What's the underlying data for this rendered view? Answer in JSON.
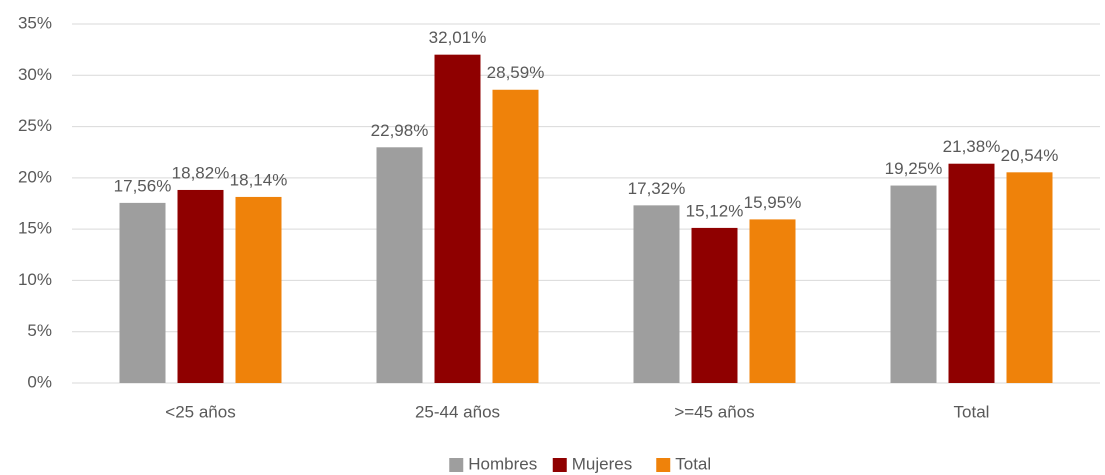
{
  "chart_data": {
    "type": "bar",
    "categories": [
      "<25 años",
      "25-44 años",
      ">=45 años",
      "Total"
    ],
    "series": [
      {
        "name": "Hombres",
        "color": "#9e9e9e",
        "values": [
          17.56,
          22.98,
          17.32,
          19.25
        ],
        "value_labels": [
          "17,56%",
          "22,98%",
          "17,32%",
          "19,25%"
        ]
      },
      {
        "name": "Mujeres",
        "color": "#8f0000",
        "values": [
          18.82,
          32.01,
          15.12,
          21.38
        ],
        "value_labels": [
          "18,82%",
          "32,01%",
          "15,12%",
          "21,38%"
        ]
      },
      {
        "name": "Total",
        "color": "#ef820a",
        "values": [
          18.14,
          28.59,
          15.95,
          20.54
        ],
        "value_labels": [
          "18,14%",
          "28,59%",
          "15,95%",
          "20,54%"
        ]
      }
    ],
    "ylim": [
      0,
      35
    ],
    "yticks": [
      {
        "value": 0,
        "label": "0%"
      },
      {
        "value": 5,
        "label": "5%"
      },
      {
        "value": 10,
        "label": "10%"
      },
      {
        "value": 15,
        "label": "15%"
      },
      {
        "value": 20,
        "label": "20%"
      },
      {
        "value": 25,
        "label": "25%"
      },
      {
        "value": 30,
        "label": "30%"
      },
      {
        "value": 35,
        "label": "35%"
      }
    ],
    "grid": true,
    "legend": "bottom"
  }
}
